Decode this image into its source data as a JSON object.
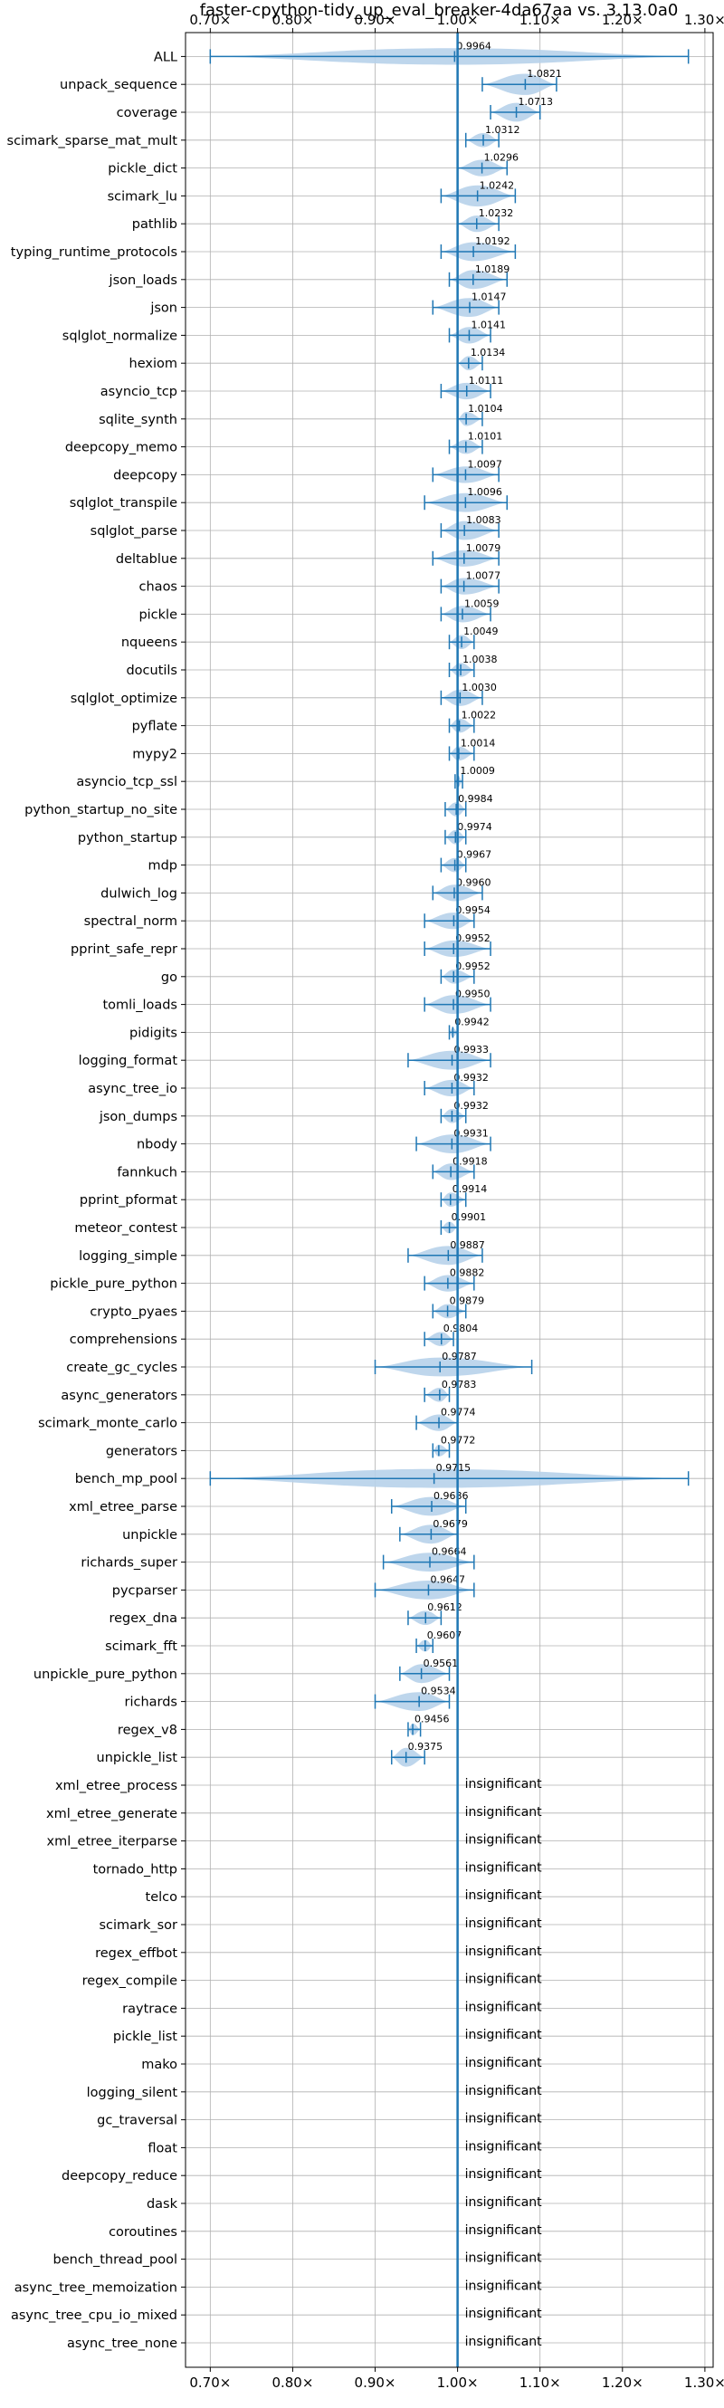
{
  "chart_data": {
    "type": "violin",
    "title": "faster-cpython-tidy_up_eval_breaker-4da67aa vs. 3.13.0a0",
    "xlim": [
      0.67,
      1.31
    ],
    "xticks": [
      0.7,
      0.8,
      0.9,
      1.0,
      1.1,
      1.2,
      1.3
    ],
    "xtick_labels": [
      "0.70×",
      "0.80×",
      "0.90×",
      "1.00×",
      "1.10×",
      "1.20×",
      "1.30×"
    ],
    "reference_line": 1.0,
    "grid": true,
    "insignificant_label": "insignificant",
    "benchmarks": [
      {
        "name": "ALL",
        "label": "0.9964",
        "median": 0.9964,
        "min": 0.7,
        "max": 1.28,
        "width": 0.7
      },
      {
        "name": "unpack_sequence",
        "label": "1.0821",
        "median": 1.0821,
        "min": 1.03,
        "max": 1.12,
        "width": 0.9
      },
      {
        "name": "coverage",
        "label": "1.0713",
        "median": 1.0713,
        "min": 1.04,
        "max": 1.1,
        "width": 0.8
      },
      {
        "name": "scimark_sparse_mat_mult",
        "label": "1.0312",
        "median": 1.0312,
        "min": 1.01,
        "max": 1.05,
        "width": 0.6
      },
      {
        "name": "pickle_dict",
        "label": "1.0296",
        "median": 1.0296,
        "min": 1.0,
        "max": 1.06,
        "width": 0.7
      },
      {
        "name": "scimark_lu",
        "label": "1.0242",
        "median": 1.0242,
        "min": 0.98,
        "max": 1.07,
        "width": 0.9
      },
      {
        "name": "pathlib",
        "label": "1.0232",
        "median": 1.0232,
        "min": 1.0,
        "max": 1.05,
        "width": 0.7
      },
      {
        "name": "typing_runtime_protocols",
        "label": "1.0192",
        "median": 1.0192,
        "min": 0.98,
        "max": 1.07,
        "width": 0.8
      },
      {
        "name": "json_loads",
        "label": "1.0189",
        "median": 1.0189,
        "min": 0.99,
        "max": 1.06,
        "width": 0.8
      },
      {
        "name": "json",
        "label": "1.0147",
        "median": 1.0147,
        "min": 0.97,
        "max": 1.05,
        "width": 0.8
      },
      {
        "name": "sqlglot_normalize",
        "label": "1.0141",
        "median": 1.0141,
        "min": 0.99,
        "max": 1.04,
        "width": 0.7
      },
      {
        "name": "hexiom",
        "label": "1.0134",
        "median": 1.0134,
        "min": 1.0,
        "max": 1.03,
        "width": 0.6
      },
      {
        "name": "asyncio_tcp",
        "label": "1.0111",
        "median": 1.0111,
        "min": 0.98,
        "max": 1.04,
        "width": 0.7
      },
      {
        "name": "sqlite_synth",
        "label": "1.0104",
        "median": 1.0104,
        "min": 1.0,
        "max": 1.03,
        "width": 0.6
      },
      {
        "name": "deepcopy_memo",
        "label": "1.0101",
        "median": 1.0101,
        "min": 0.99,
        "max": 1.03,
        "width": 0.6
      },
      {
        "name": "deepcopy",
        "label": "1.0097",
        "median": 1.0097,
        "min": 0.97,
        "max": 1.05,
        "width": 0.7
      },
      {
        "name": "sqlglot_transpile",
        "label": "1.0096",
        "median": 1.0096,
        "min": 0.96,
        "max": 1.06,
        "width": 0.8
      },
      {
        "name": "sqlglot_parse",
        "label": "1.0083",
        "median": 1.0083,
        "min": 0.98,
        "max": 1.05,
        "width": 0.8
      },
      {
        "name": "deltablue",
        "label": "1.0079",
        "median": 1.0079,
        "min": 0.97,
        "max": 1.05,
        "width": 0.7
      },
      {
        "name": "chaos",
        "label": "1.0077",
        "median": 1.0077,
        "min": 0.98,
        "max": 1.05,
        "width": 0.7
      },
      {
        "name": "pickle",
        "label": "1.0059",
        "median": 1.0059,
        "min": 0.98,
        "max": 1.04,
        "width": 0.7
      },
      {
        "name": "nqueens",
        "label": "1.0049",
        "median": 1.0049,
        "min": 0.99,
        "max": 1.02,
        "width": 0.6
      },
      {
        "name": "docutils",
        "label": "1.0038",
        "median": 1.0038,
        "min": 0.99,
        "max": 1.02,
        "width": 0.6
      },
      {
        "name": "sqlglot_optimize",
        "label": "1.0030",
        "median": 1.003,
        "min": 0.98,
        "max": 1.03,
        "width": 0.7
      },
      {
        "name": "pyflate",
        "label": "1.0022",
        "median": 1.0022,
        "min": 0.99,
        "max": 1.02,
        "width": 0.6
      },
      {
        "name": "mypy2",
        "label": "1.0014",
        "median": 1.0014,
        "min": 0.99,
        "max": 1.02,
        "width": 0.6
      },
      {
        "name": "asyncio_tcp_ssl",
        "label": "1.0009",
        "median": 1.0009,
        "min": 0.997,
        "max": 1.006,
        "width": 0.4
      },
      {
        "name": "python_startup_no_site",
        "label": "0.9984",
        "median": 0.9984,
        "min": 0.985,
        "max": 1.01,
        "width": 0.6
      },
      {
        "name": "python_startup",
        "label": "0.9974",
        "median": 0.9974,
        "min": 0.985,
        "max": 1.01,
        "width": 0.6
      },
      {
        "name": "mdp",
        "label": "0.9967",
        "median": 0.9967,
        "min": 0.98,
        "max": 1.01,
        "width": 0.6
      },
      {
        "name": "dulwich_log",
        "label": "0.9960",
        "median": 0.996,
        "min": 0.97,
        "max": 1.03,
        "width": 0.7
      },
      {
        "name": "spectral_norm",
        "label": "0.9954",
        "median": 0.9954,
        "min": 0.96,
        "max": 1.02,
        "width": 0.7
      },
      {
        "name": "pprint_safe_repr",
        "label": "0.9952",
        "median": 0.9952,
        "min": 0.96,
        "max": 1.04,
        "width": 0.7
      },
      {
        "name": "go",
        "label": "0.9952",
        "median": 0.9952,
        "min": 0.98,
        "max": 1.02,
        "width": 0.6
      },
      {
        "name": "tomli_loads",
        "label": "0.9950",
        "median": 0.995,
        "min": 0.96,
        "max": 1.04,
        "width": 0.8
      },
      {
        "name": "pidigits",
        "label": "0.9942",
        "median": 0.9942,
        "min": 0.99,
        "max": 1.0,
        "width": 0.4
      },
      {
        "name": "logging_format",
        "label": "0.9933",
        "median": 0.9933,
        "min": 0.94,
        "max": 1.04,
        "width": 0.8
      },
      {
        "name": "async_tree_io",
        "label": "0.9932",
        "median": 0.9932,
        "min": 0.96,
        "max": 1.02,
        "width": 0.7
      },
      {
        "name": "json_dumps",
        "label": "0.9932",
        "median": 0.9932,
        "min": 0.98,
        "max": 1.01,
        "width": 0.6
      },
      {
        "name": "nbody",
        "label": "0.9931",
        "median": 0.9931,
        "min": 0.95,
        "max": 1.04,
        "width": 0.8
      },
      {
        "name": "fannkuch",
        "label": "0.9918",
        "median": 0.9918,
        "min": 0.97,
        "max": 1.02,
        "width": 0.7
      },
      {
        "name": "pprint_pformat",
        "label": "0.9914",
        "median": 0.9914,
        "min": 0.98,
        "max": 1.01,
        "width": 0.6
      },
      {
        "name": "meteor_contest",
        "label": "0.9901",
        "median": 0.9901,
        "min": 0.98,
        "max": 1.0,
        "width": 0.5
      },
      {
        "name": "logging_simple",
        "label": "0.9887",
        "median": 0.9887,
        "min": 0.94,
        "max": 1.03,
        "width": 0.8
      },
      {
        "name": "pickle_pure_python",
        "label": "0.9882",
        "median": 0.9882,
        "min": 0.96,
        "max": 1.02,
        "width": 0.7
      },
      {
        "name": "crypto_pyaes",
        "label": "0.9879",
        "median": 0.9879,
        "min": 0.97,
        "max": 1.01,
        "width": 0.6
      },
      {
        "name": "comprehensions",
        "label": "0.9804",
        "median": 0.9804,
        "min": 0.96,
        "max": 0.995,
        "width": 0.6
      },
      {
        "name": "create_gc_cycles",
        "label": "0.9787",
        "median": 0.9787,
        "min": 0.9,
        "max": 1.09,
        "width": 0.8
      },
      {
        "name": "async_generators",
        "label": "0.9783",
        "median": 0.9783,
        "min": 0.96,
        "max": 0.99,
        "width": 0.6
      },
      {
        "name": "scimark_monte_carlo",
        "label": "0.9774",
        "median": 0.9774,
        "min": 0.95,
        "max": 1.0,
        "width": 0.7
      },
      {
        "name": "generators",
        "label": "0.9772",
        "median": 0.9772,
        "min": 0.97,
        "max": 0.99,
        "width": 0.5
      },
      {
        "name": "bench_mp_pool",
        "label": "0.9715",
        "median": 0.9715,
        "min": 0.7,
        "max": 1.28,
        "width": 0.8
      },
      {
        "name": "xml_etree_parse",
        "label": "0.9686",
        "median": 0.9686,
        "min": 0.92,
        "max": 1.01,
        "width": 0.8
      },
      {
        "name": "unpickle",
        "label": "0.9679",
        "median": 0.9679,
        "min": 0.93,
        "max": 1.0,
        "width": 0.8
      },
      {
        "name": "richards_super",
        "label": "0.9664",
        "median": 0.9664,
        "min": 0.91,
        "max": 1.02,
        "width": 0.8
      },
      {
        "name": "pycparser",
        "label": "0.9647",
        "median": 0.9647,
        "min": 0.9,
        "max": 1.02,
        "width": 0.8
      },
      {
        "name": "regex_dna",
        "label": "0.9612",
        "median": 0.9612,
        "min": 0.94,
        "max": 0.98,
        "width": 0.6
      },
      {
        "name": "scimark_fft",
        "label": "0.9607",
        "median": 0.9607,
        "min": 0.95,
        "max": 0.97,
        "width": 0.5
      },
      {
        "name": "unpickle_pure_python",
        "label": "0.9561",
        "median": 0.9561,
        "min": 0.93,
        "max": 0.99,
        "width": 0.8
      },
      {
        "name": "richards",
        "label": "0.9534",
        "median": 0.9534,
        "min": 0.9,
        "max": 0.99,
        "width": 0.8
      },
      {
        "name": "regex_v8",
        "label": "0.9456",
        "median": 0.9456,
        "min": 0.94,
        "max": 0.955,
        "width": 0.5
      },
      {
        "name": "unpickle_list",
        "label": "0.9375",
        "median": 0.9375,
        "min": 0.92,
        "max": 0.96,
        "width": 0.8
      },
      {
        "name": "xml_etree_process",
        "insignificant": true
      },
      {
        "name": "xml_etree_generate",
        "insignificant": true
      },
      {
        "name": "xml_etree_iterparse",
        "insignificant": true
      },
      {
        "name": "tornado_http",
        "insignificant": true
      },
      {
        "name": "telco",
        "insignificant": true
      },
      {
        "name": "scimark_sor",
        "insignificant": true
      },
      {
        "name": "regex_effbot",
        "insignificant": true
      },
      {
        "name": "regex_compile",
        "insignificant": true
      },
      {
        "name": "raytrace",
        "insignificant": true
      },
      {
        "name": "pickle_list",
        "insignificant": true
      },
      {
        "name": "mako",
        "insignificant": true
      },
      {
        "name": "logging_silent",
        "insignificant": true
      },
      {
        "name": "gc_traversal",
        "insignificant": true
      },
      {
        "name": "float",
        "insignificant": true
      },
      {
        "name": "deepcopy_reduce",
        "insignificant": true
      },
      {
        "name": "dask",
        "insignificant": true
      },
      {
        "name": "coroutines",
        "insignificant": true
      },
      {
        "name": "bench_thread_pool",
        "insignificant": true
      },
      {
        "name": "async_tree_memoization",
        "insignificant": true
      },
      {
        "name": "async_tree_cpu_io_mixed",
        "insignificant": true
      },
      {
        "name": "async_tree_none",
        "insignificant": true
      }
    ]
  },
  "colors": {
    "violin_fill": "#b7d1ea",
    "line": "#1f77b4",
    "grid": "#b0b0b0",
    "axis": "#000000"
  }
}
